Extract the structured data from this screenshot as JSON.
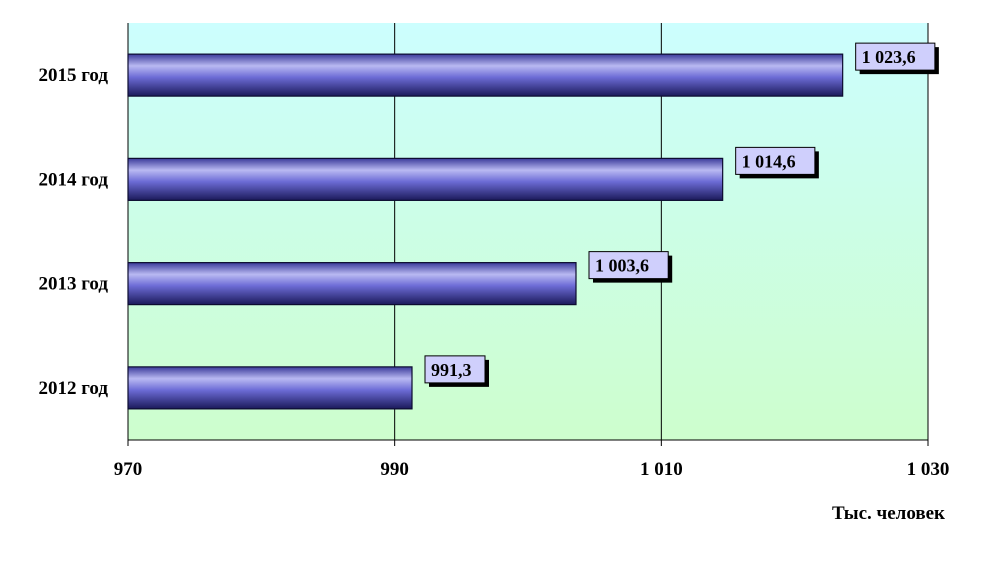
{
  "chart_data": {
    "type": "bar",
    "orientation": "horizontal",
    "categories": [
      "2012 год",
      "2013 год",
      "2014 год",
      "2015 год"
    ],
    "values": [
      991.3,
      1003.6,
      1014.6,
      1023.6
    ],
    "value_labels": [
      "991,3",
      "1 003,6",
      "1 014,6",
      "1 023,6"
    ],
    "x_ticks": [
      970,
      990,
      1010,
      1030
    ],
    "x_tick_labels": [
      "970",
      "990",
      "1 010",
      "1 030"
    ],
    "xlim": [
      970,
      1030
    ],
    "xlabel": "Тыс. человек",
    "ylabel": "",
    "title": "",
    "grid": true,
    "legend": "none",
    "colors": {
      "bar": "#6d6cd6",
      "bar_highlight": "#b9b9f2",
      "bar_shadow": "#1b1a5a",
      "background_top": "#ccfefe",
      "background_bottom": "#cdfecd",
      "label_box": "#cfcffc",
      "gridline": "#000000"
    }
  }
}
